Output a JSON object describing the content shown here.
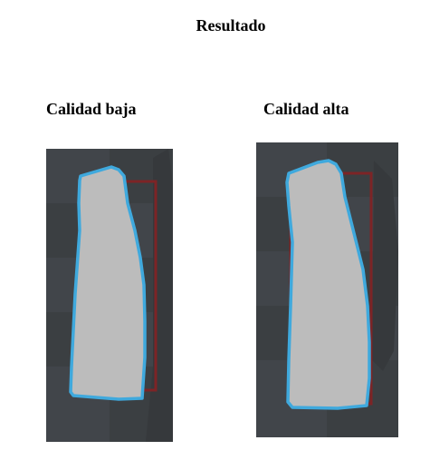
{
  "title": "Resultado",
  "panels": [
    {
      "label": "Calidad baja"
    },
    {
      "label": "Calidad alta"
    }
  ],
  "colors": {
    "background_dark": "#3b3f42",
    "background_mid": "#43474a",
    "tooth_fill": "#bcbcbc",
    "outline": "#3fa9dd",
    "box": "#7d2426"
  }
}
